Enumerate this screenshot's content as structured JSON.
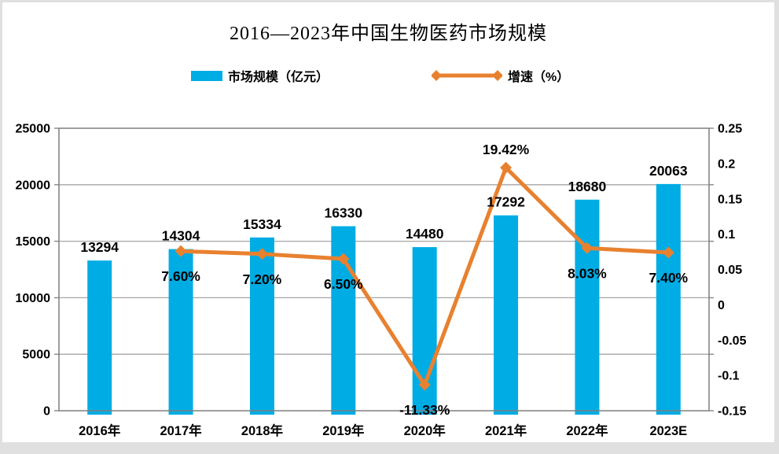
{
  "title": "2016—2023年中国生物医药市场规模",
  "legend": {
    "bar": {
      "label": "市场规模（亿元）"
    },
    "line": {
      "label": "增速（%）"
    }
  },
  "colors": {
    "bar": "#00ace4",
    "line": "#e8812f",
    "grid": "#a6a6a6",
    "border": "#7f7f7f",
    "text": "#000000",
    "panel_bg": "#ffffff",
    "frame_bg": "#e0e0e0"
  },
  "chart_data": {
    "type": "bar+line combo",
    "title": "2016—2023年中国生物医药市场规模",
    "categories": [
      "2016年",
      "2017年",
      "2018年",
      "2019年",
      "2020年",
      "2021年",
      "2022年",
      "2023E"
    ],
    "series": [
      {
        "name": "市场规模（亿元）",
        "type": "bar",
        "axis": "left",
        "values": [
          13294,
          14304,
          15334,
          16330,
          14480,
          17292,
          18680,
          20063
        ],
        "labels": [
          "13294",
          "14304",
          "15334",
          "16330",
          "14480",
          "17292",
          "18680",
          "20063"
        ]
      },
      {
        "name": "增速（%）",
        "type": "line",
        "axis": "right",
        "values": [
          null,
          0.076,
          0.072,
          0.065,
          -0.1133,
          0.1942,
          0.0803,
          0.074
        ],
        "labels": [
          "",
          "7.60%",
          "7.20%",
          "6.50%",
          "-11.33%",
          "19.42%",
          "8.03%",
          "7.40%"
        ],
        "label_pos": [
          "",
          "below",
          "below",
          "below",
          "below",
          "above",
          "below",
          "below"
        ]
      }
    ],
    "left_axis": {
      "min": 0,
      "max": 25000,
      "step": 5000,
      "tick_labels": [
        "0",
        "5000",
        "10000",
        "15000",
        "20000",
        "25000"
      ]
    },
    "right_axis": {
      "min": -0.15,
      "max": 0.25,
      "label_step": 0.05,
      "tick_labels": [
        "0.25",
        "0.2",
        "0.15",
        "0.1",
        "0.05",
        "0",
        "-0.05",
        "-0.1",
        "-0.15"
      ]
    },
    "grid": true,
    "legend_position": "top"
  }
}
